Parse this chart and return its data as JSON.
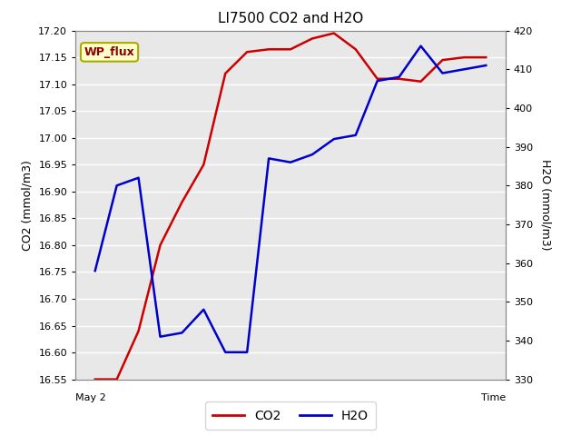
{
  "title": "LI7500 CO2 and H2O",
  "xlabel": "Time",
  "ylabel_left": "CO2 (mmol/m3)",
  "ylabel_right": "H2O (mmol/m3)",
  "x": [
    0,
    1,
    2,
    3,
    4,
    5,
    6,
    7,
    8,
    9,
    10,
    11,
    12,
    13,
    14,
    15,
    16,
    17,
    18
  ],
  "co2": [
    16.55,
    16.55,
    16.64,
    16.8,
    16.88,
    16.95,
    17.12,
    17.16,
    17.165,
    17.165,
    17.185,
    17.195,
    17.165,
    17.11,
    17.11,
    17.105,
    17.145,
    17.15,
    17.15
  ],
  "h2o": [
    358,
    380,
    382,
    341,
    342,
    348,
    337,
    337,
    387,
    386,
    388,
    392,
    393,
    407,
    408,
    416,
    409,
    410,
    411
  ],
  "co2_color": "#cc0000",
  "h2o_color": "#0000cc",
  "ylim_left": [
    16.55,
    17.2
  ],
  "ylim_right": [
    330,
    420
  ],
  "yticks_left": [
    16.55,
    16.6,
    16.65,
    16.7,
    16.75,
    16.8,
    16.85,
    16.9,
    16.95,
    17.0,
    17.05,
    17.1,
    17.15,
    17.2
  ],
  "yticks_right": [
    330,
    340,
    350,
    360,
    370,
    380,
    390,
    400,
    410,
    420
  ],
  "bg_color": "#e8e8e8",
  "grid_color": "#ffffff",
  "label_box_text": "WP_flux",
  "label_box_bg": "#ffffcc",
  "label_box_border": "#aaaa00",
  "x_label_text": "May 2",
  "time_label": "Time",
  "linewidth": 1.8,
  "title_fontsize": 11,
  "axis_fontsize": 9,
  "tick_fontsize": 8
}
